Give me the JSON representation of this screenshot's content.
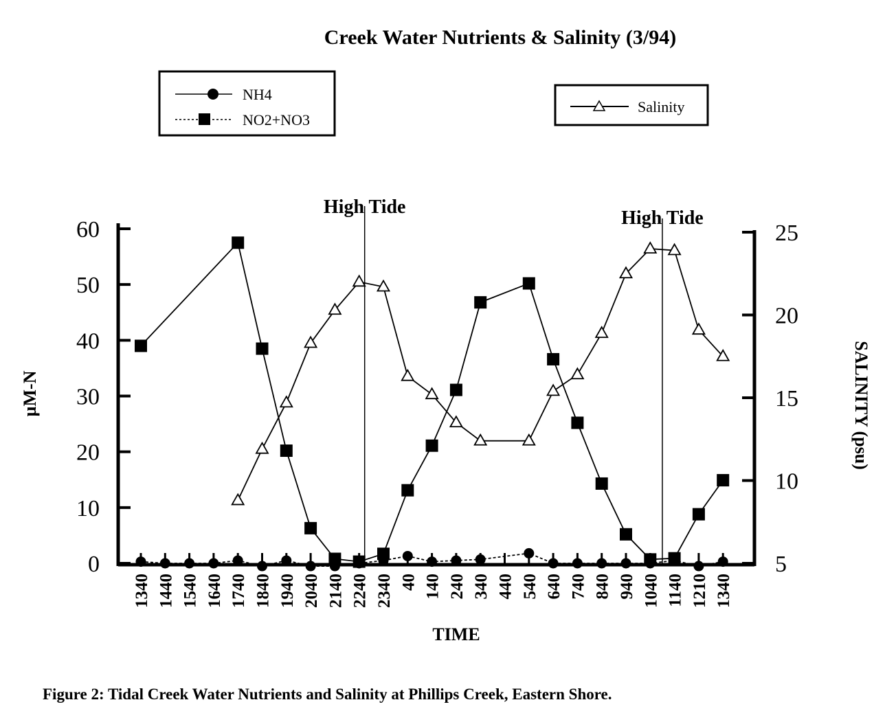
{
  "chart_data": {
    "type": "line",
    "title": "Creek Water Nutrients & Salinity (3/94)",
    "caption": "Figure 2:  Tidal Creek Water Nutrients and Salinity at Phillips Creek, Eastern Shore.",
    "xlabel": "TIME",
    "ylabel": "µM-N",
    "y2label": "SALINITY (psu)",
    "ylim": [
      0,
      60
    ],
    "y2lim": [
      5,
      25
    ],
    "yticks": [
      "0",
      "10",
      "20",
      "30",
      "40",
      "50",
      "60"
    ],
    "y2ticks": [
      "5",
      "10",
      "15",
      "20",
      "25"
    ],
    "categories": [
      "1340",
      "1440",
      "1540",
      "1640",
      "1740",
      "1840",
      "1940",
      "2040",
      "2140",
      "2240",
      "2340",
      "40",
      "140",
      "240",
      "340",
      "440",
      "540",
      "640",
      "740",
      "840",
      "940",
      "1040",
      "1140",
      "1210",
      "1340"
    ],
    "series": [
      {
        "name": "NH4",
        "axis": "left",
        "marker": "circle",
        "values": [
          0.3,
          0,
          0,
          0,
          0.5,
          -0.5,
          0.5,
          -0.5,
          -0.5,
          0,
          0.5,
          1.3,
          0.3,
          0.5,
          0.7,
          null,
          1.8,
          0,
          0,
          0,
          0,
          0,
          0.5,
          -0.5,
          0.3
        ]
      },
      {
        "name": "NO2+NO3",
        "axis": "left",
        "marker": "square",
        "values": [
          39,
          null,
          null,
          null,
          57.5,
          38.5,
          20.2,
          6.3,
          0.8,
          0.3,
          1.7,
          13.1,
          21.1,
          31.1,
          46.8,
          null,
          50.2,
          36.6,
          25.2,
          14.3,
          5.2,
          0.7,
          0.9,
          8.8,
          14.9
        ]
      },
      {
        "name": "Salinity",
        "axis": "right",
        "marker": "triangle",
        "values": [
          null,
          null,
          null,
          null,
          8.8,
          11.9,
          14.7,
          18.3,
          20.3,
          22.0,
          21.7,
          16.3,
          15.2,
          13.5,
          12.4,
          null,
          12.4,
          15.4,
          16.4,
          18.9,
          22.5,
          24.0,
          23.9,
          19.1,
          17.5
        ]
      }
    ],
    "annotations": [
      {
        "text": "High Tide",
        "at_category_index": 9
      },
      {
        "text": "High Tide",
        "at_category_index": 21.5
      }
    ],
    "legend_placement": [
      "top-left",
      "top-right"
    ],
    "grid": false,
    "colors": {
      "line": "#000000",
      "background": "#ffffff"
    }
  }
}
